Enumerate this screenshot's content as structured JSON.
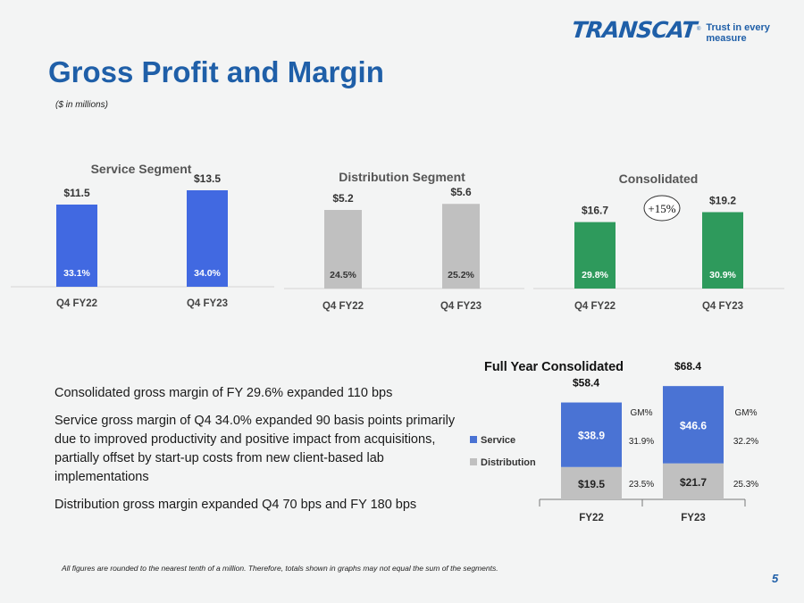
{
  "header": {
    "logo_text": "TRANSCAT",
    "logo_mark": "®",
    "tagline": "Trust in every measure",
    "title": "Gross Profit and Margin",
    "subtitle": "($ in millions)"
  },
  "chart_data": [
    {
      "type": "bar",
      "title": "Service Segment",
      "categories": [
        "Q4 FY22",
        "Q4 FY23"
      ],
      "values": [
        11.5,
        13.5
      ],
      "value_labels": [
        "$11.5",
        "$13.5"
      ],
      "margin_labels": [
        "33.1%",
        "34.0%"
      ],
      "color": "#4169e1",
      "ylim": [
        0,
        15
      ]
    },
    {
      "type": "bar",
      "title": "Distribution Segment",
      "categories": [
        "Q4 FY22",
        "Q4 FY23"
      ],
      "values": [
        5.2,
        5.6
      ],
      "value_labels": [
        "$5.2",
        "$5.6"
      ],
      "margin_labels": [
        "24.5%",
        "25.2%"
      ],
      "color": "#c0c0c0",
      "ylim": [
        0,
        6.5
      ]
    },
    {
      "type": "bar",
      "title": "Consolidated",
      "categories": [
        "Q4 FY22",
        "Q4 FY23"
      ],
      "values": [
        16.7,
        19.2
      ],
      "value_labels": [
        "$16.7",
        "$19.2"
      ],
      "margin_labels": [
        "29.8%",
        "30.9%"
      ],
      "color": "#2e9a5c",
      "growth_label": "+15%",
      "ylim": [
        0,
        22
      ]
    },
    {
      "type": "bar",
      "stacked": true,
      "title": "Full Year Consolidated",
      "categories": [
        "FY22",
        "FY23"
      ],
      "series": [
        {
          "name": "Service",
          "values": [
            38.9,
            46.6
          ],
          "labels": [
            "$38.9",
            "$46.6"
          ],
          "margins": [
            "31.9%",
            "32.2%"
          ],
          "color": "#4a73d4"
        },
        {
          "name": "Distribution",
          "values": [
            19.5,
            21.7
          ],
          "labels": [
            "$19.5",
            "$21.7"
          ],
          "margins": [
            "23.5%",
            "25.3%"
          ],
          "color": "#c0c0c0"
        }
      ],
      "totals": [
        "$58.4",
        "$68.4"
      ],
      "margin_header": "GM%",
      "ylim": [
        0,
        70
      ]
    }
  ],
  "bullets": [
    "Consolidated gross margin of FY 29.6% expanded 110 bps",
    "Service gross margin of Q4 34.0% expanded 90 basis points primarily due to improved productivity and positive impact from acquisitions, partially offset by start-up costs from new client-based lab implementations",
    "Distribution gross margin expanded Q4 70 bps and FY 180 bps"
  ],
  "footnote": "All figures are rounded to the nearest tenth of a million. Therefore, totals shown in graphs may not equal the sum of the segments.",
  "page_number": "5"
}
